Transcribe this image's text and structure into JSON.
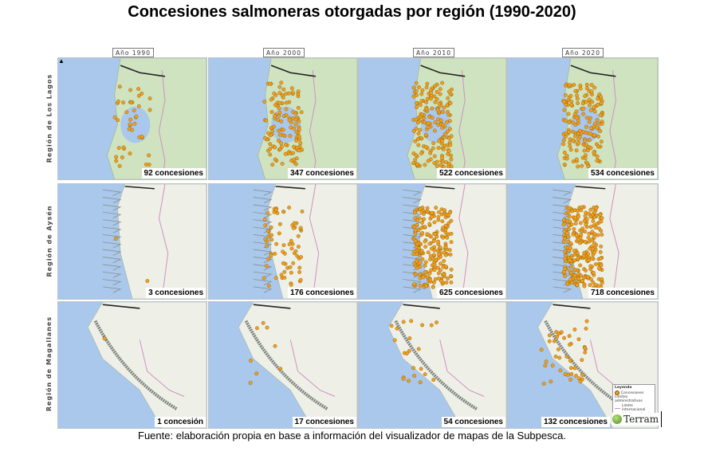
{
  "title": "Concesiones salmoneras otorgadas por región (1990-2020)",
  "source": "Fuente: elaboración propia en base a información del visualizador de mapas de la Subpesca.",
  "years": [
    "Año 1990",
    "Año 2000",
    "Año 2010",
    "Año 2020"
  ],
  "regions": [
    {
      "label": "Región de Los Lagos",
      "counts": [
        "92 concesiones",
        "347 concesiones",
        "522 concesiones",
        "534 concesiones"
      ]
    },
    {
      "label": "Región de Aysén",
      "counts": [
        "3 concesiones",
        "176 concesiones",
        "625 concesiones",
        "718 concesiones"
      ]
    },
    {
      "label": "Región de Magallanes",
      "counts": [
        "1 concesión",
        "17 concesiones",
        "54 concesiones",
        "132 concesiones"
      ]
    }
  ],
  "legend": {
    "title": "Leyenda",
    "item_concesiones": "Concesiones",
    "limits_title": "Límites administrativos",
    "item_international": "Límite internacional",
    "item_regional": "Límite regional"
  },
  "logo_text": "Terram",
  "north_arrow": "▲",
  "colors": {
    "ocean": "#a9c8ec",
    "land_green": "#cfe3c0",
    "land_light": "#eef0e8",
    "concession": "#f0a020",
    "intl_border": "#d08fc0",
    "regional_border": "#222222"
  },
  "icons": {
    "north": "north-arrow-icon",
    "logo": "globe-icon"
  }
}
